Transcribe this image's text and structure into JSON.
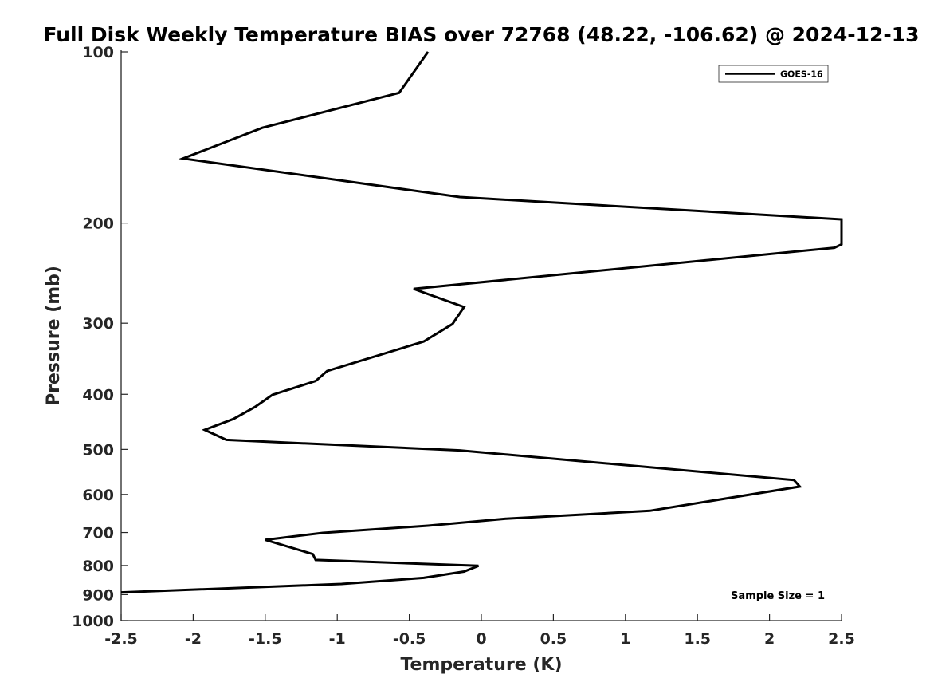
{
  "chart_data": {
    "type": "line",
    "title": "Full Disk Weekly Temperature BIAS over 72768 (48.22, -106.62) @ 2024-12-13",
    "xlabel": "Temperature (K)",
    "ylabel": "Pressure (mb)",
    "xlim": [
      -2.5,
      2.5
    ],
    "ylim": [
      100,
      1000
    ],
    "y_scale": "log",
    "y_reversed": true,
    "x_ticks": [
      -2.5,
      -2,
      -1.5,
      -1,
      -0.5,
      0,
      0.5,
      1,
      1.5,
      2,
      2.5
    ],
    "x_tick_labels": [
      "-2.5",
      "-2",
      "-1.5",
      "-1",
      "-0.5",
      "0",
      "0.5",
      "1",
      "1.5",
      "2",
      "2.5"
    ],
    "y_ticks": [
      100,
      200,
      300,
      400,
      500,
      600,
      700,
      800,
      900,
      1000
    ],
    "y_tick_labels": [
      "100",
      "200",
      "300",
      "400",
      "500",
      "600",
      "700",
      "800",
      "900",
      "1000"
    ],
    "grid": false,
    "legend_position": "top-right",
    "annotation": "Sample Size = 1",
    "series": [
      {
        "name": "GOES-16",
        "color": "#000000",
        "points": [
          {
            "x": -0.37,
            "p": 100
          },
          {
            "x": -0.57,
            "p": 118
          },
          {
            "x": -1.52,
            "p": 136
          },
          {
            "x": -2.07,
            "p": 154
          },
          {
            "x": -0.15,
            "p": 180
          },
          {
            "x": 2.5,
            "p": 197
          },
          {
            "x": 2.5,
            "p": 218
          },
          {
            "x": 2.45,
            "p": 221
          },
          {
            "x": -0.47,
            "p": 261
          },
          {
            "x": -0.12,
            "p": 281
          },
          {
            "x": -0.2,
            "p": 301
          },
          {
            "x": -0.4,
            "p": 323
          },
          {
            "x": -1.07,
            "p": 364
          },
          {
            "x": -1.15,
            "p": 379
          },
          {
            "x": -1.45,
            "p": 401
          },
          {
            "x": -1.57,
            "p": 421
          },
          {
            "x": -1.72,
            "p": 442
          },
          {
            "x": -1.92,
            "p": 462
          },
          {
            "x": -1.77,
            "p": 481
          },
          {
            "x": -0.15,
            "p": 502
          },
          {
            "x": 2.17,
            "p": 566
          },
          {
            "x": 2.21,
            "p": 581
          },
          {
            "x": 1.17,
            "p": 641
          },
          {
            "x": 0.17,
            "p": 662
          },
          {
            "x": -0.37,
            "p": 681
          },
          {
            "x": -1.1,
            "p": 701
          },
          {
            "x": -1.5,
            "p": 721
          },
          {
            "x": -1.17,
            "p": 764
          },
          {
            "x": -1.15,
            "p": 782
          },
          {
            "x": -0.02,
            "p": 801
          },
          {
            "x": -0.12,
            "p": 820
          },
          {
            "x": -0.4,
            "p": 841
          },
          {
            "x": -0.97,
            "p": 862
          },
          {
            "x": -2.5,
            "p": 892
          }
        ]
      }
    ]
  }
}
